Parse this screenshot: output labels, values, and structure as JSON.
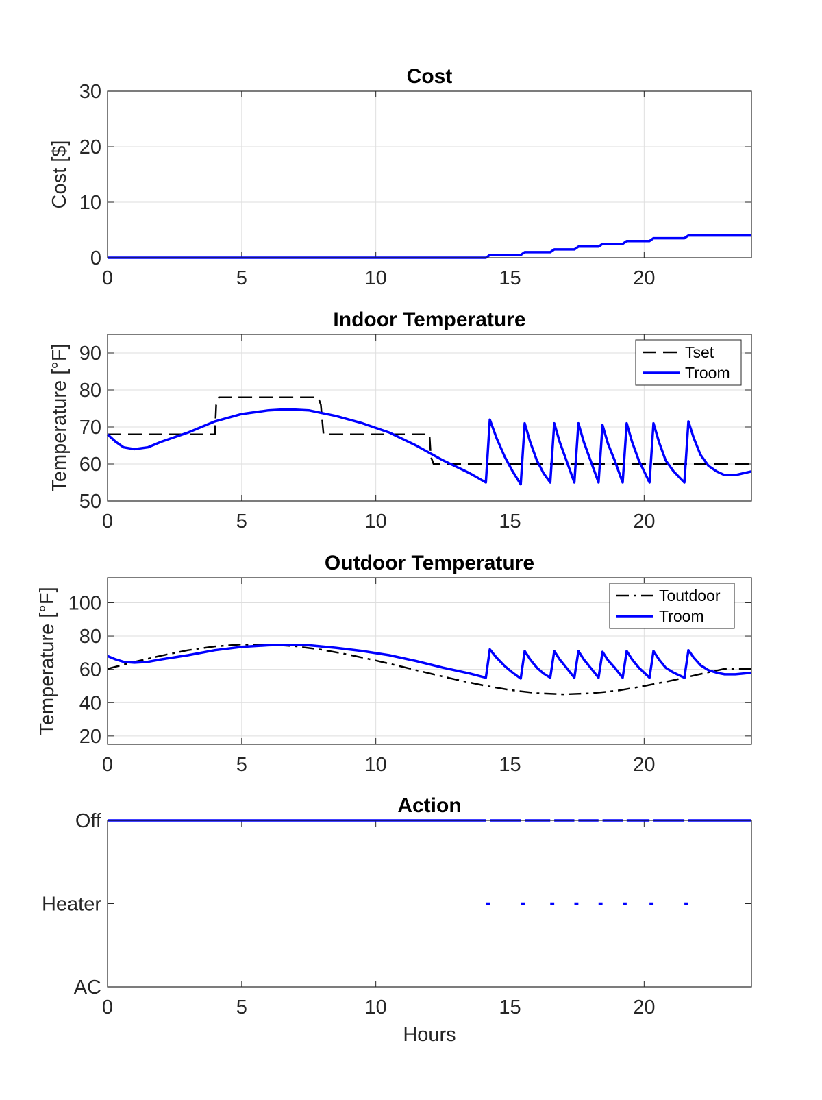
{
  "chart_data": [
    {
      "type": "line",
      "title": "Cost",
      "xlabel": "",
      "ylabel": "Cost [$]",
      "xlim": [
        0,
        24
      ],
      "ylim": [
        0,
        30
      ],
      "xticks": [
        0,
        5,
        10,
        15,
        20
      ],
      "yticks": [
        0,
        10,
        20,
        30
      ],
      "grid": true,
      "series": [
        {
          "name": "",
          "color": "#0000ff",
          "style": "solid",
          "x": [
            0,
            14.1,
            14.25,
            15.4,
            15.55,
            16.5,
            16.65,
            17.4,
            17.55,
            18.3,
            18.45,
            19.2,
            19.35,
            20.2,
            20.35,
            21.5,
            21.65,
            24
          ],
          "y": [
            0,
            0,
            0.5,
            0.5,
            1.0,
            1.0,
            1.5,
            1.5,
            2.0,
            2.0,
            2.5,
            2.5,
            3.0,
            3.0,
            3.5,
            3.5,
            4.0,
            4.0
          ]
        }
      ]
    },
    {
      "type": "line",
      "title": "Indoor Temperature",
      "xlabel": "",
      "ylabel": "Temperature [°F]",
      "xlim": [
        0,
        24
      ],
      "ylim": [
        50,
        95
      ],
      "xticks": [
        0,
        5,
        10,
        15,
        20
      ],
      "yticks": [
        50,
        60,
        70,
        80,
        90
      ],
      "grid": true,
      "legend": "top-right",
      "series": [
        {
          "name": "Tset",
          "color": "#000000",
          "style": "dashed",
          "x": [
            0,
            4,
            4.05,
            4.15,
            7.85,
            7.95,
            8.05,
            12,
            12.05,
            12.15,
            24
          ],
          "y": [
            68,
            68,
            76,
            78,
            78,
            76,
            68,
            68,
            62,
            60,
            60
          ]
        },
        {
          "name": "Troom",
          "color": "#0000ff",
          "style": "solid",
          "x": [
            0,
            0.3,
            0.6,
            1.0,
            1.5,
            2.0,
            3.0,
            4.0,
            5.0,
            6.0,
            6.7,
            7.5,
            8.5,
            9.5,
            10.5,
            11.5,
            12.5,
            13.5,
            14.1,
            14.25,
            14.5,
            14.8,
            15.1,
            15.4,
            15.55,
            15.75,
            16.0,
            16.25,
            16.5,
            16.65,
            16.85,
            17.1,
            17.4,
            17.55,
            17.75,
            18.0,
            18.3,
            18.45,
            18.65,
            18.9,
            19.2,
            19.35,
            19.55,
            19.8,
            20.2,
            20.35,
            20.55,
            20.8,
            21.1,
            21.5,
            21.65,
            21.85,
            22.1,
            22.4,
            22.7,
            23.0,
            23.4,
            23.7,
            24
          ],
          "y": [
            68,
            66,
            64.5,
            64,
            64.5,
            66,
            68.5,
            71.5,
            73.5,
            74.5,
            74.8,
            74.5,
            73,
            71,
            68.5,
            65,
            61,
            57.5,
            55,
            72,
            67,
            62,
            58,
            54.5,
            71,
            66,
            61,
            57.5,
            55,
            71,
            66,
            61,
            55,
            71,
            66,
            61,
            55,
            70.5,
            65.5,
            61,
            55,
            71,
            66,
            61,
            55,
            71,
            66,
            61,
            58,
            55,
            71.5,
            67,
            62.5,
            59.5,
            58,
            57,
            57,
            57.5,
            58
          ]
        }
      ]
    },
    {
      "type": "line",
      "title": "Outdoor Temperature",
      "xlabel": "",
      "ylabel": "Temperature [°F]",
      "xlim": [
        0,
        24
      ],
      "ylim": [
        15,
        115
      ],
      "xticks": [
        0,
        5,
        10,
        15,
        20
      ],
      "yticks": [
        20,
        40,
        60,
        80,
        100
      ],
      "grid": true,
      "legend": "top-right",
      "series": [
        {
          "name": "Toutdoor",
          "color": "#000000",
          "style": "dashdot",
          "x": [
            0,
            1,
            2,
            3,
            4,
            5,
            6,
            7,
            8,
            9,
            10,
            11,
            12,
            13,
            14,
            15,
            16,
            17,
            18,
            19,
            20,
            21,
            22,
            23,
            24
          ],
          "y": [
            60.3,
            64.5,
            68.2,
            71.5,
            73.8,
            75.0,
            75.0,
            73.9,
            71.8,
            68.8,
            65.3,
            61.5,
            57.6,
            53.8,
            50.4,
            47.6,
            45.7,
            45.0,
            45.6,
            47.2,
            50.0,
            53.2,
            56.8,
            60.3,
            60.3
          ]
        },
        {
          "name": "Troom",
          "color": "#0000ff",
          "style": "solid",
          "x": [
            0,
            0.3,
            0.6,
            1.0,
            1.5,
            2.0,
            3.0,
            4.0,
            5.0,
            6.0,
            6.7,
            7.5,
            8.5,
            9.5,
            10.5,
            11.5,
            12.5,
            13.5,
            14.1,
            14.25,
            14.5,
            14.8,
            15.1,
            15.4,
            15.55,
            15.75,
            16.0,
            16.25,
            16.5,
            16.65,
            16.85,
            17.1,
            17.4,
            17.55,
            17.75,
            18.0,
            18.3,
            18.45,
            18.65,
            18.9,
            19.2,
            19.35,
            19.55,
            19.8,
            20.2,
            20.35,
            20.55,
            20.8,
            21.1,
            21.5,
            21.65,
            21.85,
            22.1,
            22.4,
            22.7,
            23.0,
            23.4,
            23.7,
            24
          ],
          "y": [
            68,
            66,
            64.5,
            64,
            64.5,
            66,
            68.5,
            71.5,
            73.5,
            74.5,
            74.8,
            74.5,
            73,
            71,
            68.5,
            65,
            61,
            57.5,
            55,
            72,
            67,
            62,
            58,
            54.5,
            71,
            66,
            61,
            57.5,
            55,
            71,
            66,
            61,
            55,
            71,
            66,
            61,
            55,
            70.5,
            65.5,
            61,
            55,
            71,
            66,
            61,
            55,
            71,
            66,
            61,
            58,
            55,
            71.5,
            67,
            62.5,
            59.5,
            58,
            57,
            57,
            57.5,
            58
          ]
        }
      ]
    },
    {
      "type": "line",
      "title": "Action",
      "xlabel": "Hours",
      "ylabel": "",
      "xlim": [
        0,
        24
      ],
      "ylim": [
        0,
        2
      ],
      "xticks": [
        0,
        5,
        10,
        15,
        20
      ],
      "yticks": [
        0,
        1,
        2
      ],
      "ytick_labels": [
        "AC",
        "Heater",
        "Off"
      ],
      "grid": false,
      "series": [
        {
          "name": "",
          "color": "#0000ff",
          "style": "solid",
          "segments": [
            {
              "level": 2,
              "x": [
                0,
                14.1
              ]
            },
            {
              "level": 1,
              "x": [
                14.1,
                14.25
              ]
            },
            {
              "level": 2,
              "x": [
                14.25,
                15.4
              ]
            },
            {
              "level": 1,
              "x": [
                15.4,
                15.55
              ]
            },
            {
              "level": 2,
              "x": [
                15.55,
                16.5
              ]
            },
            {
              "level": 1,
              "x": [
                16.5,
                16.65
              ]
            },
            {
              "level": 2,
              "x": [
                16.65,
                17.4
              ]
            },
            {
              "level": 1,
              "x": [
                17.4,
                17.55
              ]
            },
            {
              "level": 2,
              "x": [
                17.55,
                18.3
              ]
            },
            {
              "level": 1,
              "x": [
                18.3,
                18.45
              ]
            },
            {
              "level": 2,
              "x": [
                18.45,
                19.2
              ]
            },
            {
              "level": 1,
              "x": [
                19.2,
                19.35
              ]
            },
            {
              "level": 2,
              "x": [
                19.35,
                20.2
              ]
            },
            {
              "level": 1,
              "x": [
                20.2,
                20.35
              ]
            },
            {
              "level": 2,
              "x": [
                20.35,
                21.5
              ]
            },
            {
              "level": 1,
              "x": [
                21.5,
                21.65
              ]
            },
            {
              "level": 2,
              "x": [
                21.65,
                24
              ]
            }
          ]
        }
      ]
    }
  ]
}
